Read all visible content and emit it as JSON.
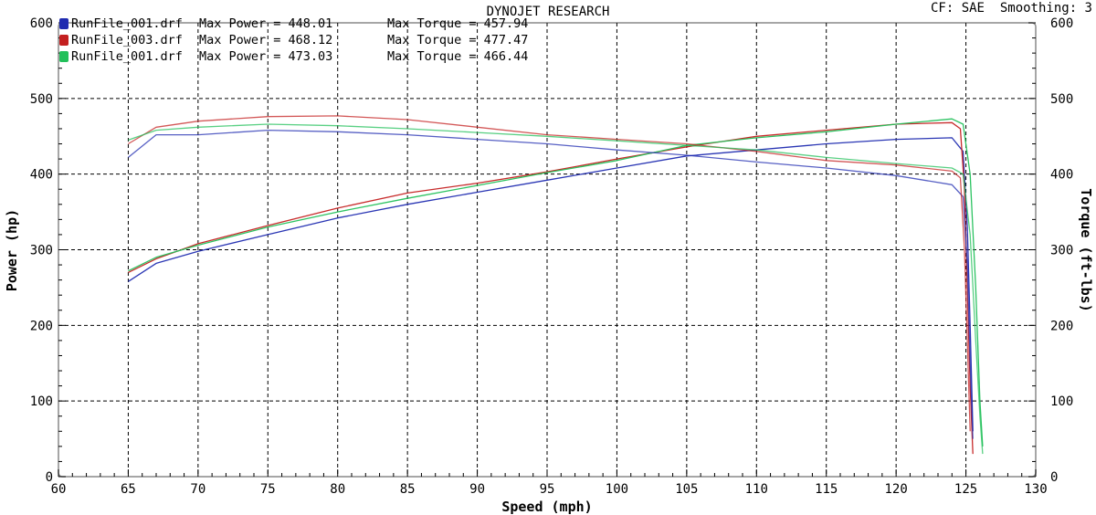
{
  "header": {
    "title": "DYNOJET RESEARCH",
    "settings": "CF: SAE  Smoothing: 3"
  },
  "legend": [
    {
      "file": "RunFile_001.drf",
      "power": "Max Power = 448.01",
      "torque": "Max Torque = 457.94",
      "color": "#1f2bb0"
    },
    {
      "file": "RunFile_003.drf",
      "power": "Max Power = 468.12",
      "torque": "Max Torque = 477.47",
      "color": "#c42020"
    },
    {
      "file": "RunFile_001.drf",
      "power": "Max Power = 473.03",
      "torque": "Max Torque = 466.44",
      "color": "#22c05a"
    }
  ],
  "chart_data": {
    "type": "line",
    "title": "DYNOJET RESEARCH",
    "xlabel": "Speed (mph)",
    "ylabel": "Power (hp)",
    "y2label": "Torque (ft-lbs)",
    "xlim": [
      60,
      130
    ],
    "ylim": [
      0,
      600
    ],
    "y2lim": [
      0,
      600
    ],
    "xticks": [
      60,
      65,
      70,
      75,
      80,
      85,
      90,
      95,
      100,
      105,
      110,
      115,
      120,
      125,
      130
    ],
    "yticks": [
      0,
      100,
      200,
      300,
      400,
      500,
      600
    ],
    "y2ticks": [
      0,
      100,
      200,
      300,
      400,
      500,
      600
    ],
    "grid": true,
    "legend_position": "top-left",
    "series": [
      {
        "name": "RunFile_001.drf",
        "quantity": "power",
        "color": "#1f2bb0",
        "points": [
          [
            65,
            258
          ],
          [
            67,
            282
          ],
          [
            70,
            298
          ],
          [
            75,
            320
          ],
          [
            80,
            342
          ],
          [
            85,
            360
          ],
          [
            90,
            376
          ],
          [
            95,
            392
          ],
          [
            100,
            408
          ],
          [
            105,
            424
          ],
          [
            110,
            432
          ],
          [
            115,
            440
          ],
          [
            120,
            446
          ],
          [
            124,
            448
          ],
          [
            124.8,
            430
          ],
          [
            125.1,
            330
          ],
          [
            125.3,
            200
          ],
          [
            125.5,
            60
          ]
        ]
      },
      {
        "name": "RunFile_003.drf",
        "quantity": "power",
        "color": "#c42020",
        "points": [
          [
            65,
            270
          ],
          [
            67,
            288
          ],
          [
            70,
            308
          ],
          [
            75,
            332
          ],
          [
            80,
            355
          ],
          [
            85,
            375
          ],
          [
            90,
            388
          ],
          [
            95,
            403
          ],
          [
            100,
            420
          ],
          [
            105,
            436
          ],
          [
            110,
            450
          ],
          [
            115,
            458
          ],
          [
            120,
            466
          ],
          [
            124,
            468
          ],
          [
            124.6,
            460
          ],
          [
            124.9,
            380
          ],
          [
            125.1,
            250
          ],
          [
            125.3,
            120
          ],
          [
            125.5,
            30
          ]
        ]
      },
      {
        "name": "RunFile_001.drf",
        "quantity": "power",
        "color": "#22c05a",
        "points": [
          [
            65,
            272
          ],
          [
            67,
            290
          ],
          [
            70,
            306
          ],
          [
            75,
            330
          ],
          [
            80,
            350
          ],
          [
            85,
            368
          ],
          [
            90,
            385
          ],
          [
            95,
            402
          ],
          [
            100,
            418
          ],
          [
            105,
            438
          ],
          [
            110,
            448
          ],
          [
            115,
            456
          ],
          [
            120,
            466
          ],
          [
            124,
            473
          ],
          [
            124.8,
            466
          ],
          [
            125.3,
            400
          ],
          [
            125.7,
            250
          ],
          [
            126,
            100
          ],
          [
            126.2,
            40
          ]
        ]
      },
      {
        "name": "RunFile_001.drf",
        "quantity": "torque",
        "color": "#1f2bb0",
        "points": [
          [
            65,
            422
          ],
          [
            67,
            452
          ],
          [
            70,
            452
          ],
          [
            75,
            458
          ],
          [
            80,
            456
          ],
          [
            85,
            452
          ],
          [
            90,
            446
          ],
          [
            95,
            440
          ],
          [
            100,
            432
          ],
          [
            105,
            425
          ],
          [
            110,
            416
          ],
          [
            115,
            408
          ],
          [
            120,
            398
          ],
          [
            124,
            386
          ],
          [
            124.8,
            370
          ],
          [
            125.1,
            280
          ],
          [
            125.3,
            150
          ],
          [
            125.5,
            50
          ]
        ]
      },
      {
        "name": "RunFile_003.drf",
        "quantity": "torque",
        "color": "#c42020",
        "points": [
          [
            65,
            440
          ],
          [
            67,
            462
          ],
          [
            70,
            470
          ],
          [
            75,
            476
          ],
          [
            80,
            477
          ],
          [
            85,
            472
          ],
          [
            90,
            462
          ],
          [
            95,
            452
          ],
          [
            100,
            446
          ],
          [
            105,
            440
          ],
          [
            110,
            430
          ],
          [
            115,
            418
          ],
          [
            120,
            412
          ],
          [
            124,
            404
          ],
          [
            124.6,
            395
          ],
          [
            124.9,
            300
          ],
          [
            125.1,
            180
          ],
          [
            125.3,
            60
          ]
        ]
      },
      {
        "name": "RunFile_001.drf",
        "quantity": "torque",
        "color": "#22c05a",
        "points": [
          [
            65,
            445
          ],
          [
            67,
            458
          ],
          [
            70,
            462
          ],
          [
            75,
            466
          ],
          [
            80,
            464
          ],
          [
            85,
            460
          ],
          [
            90,
            455
          ],
          [
            95,
            450
          ],
          [
            100,
            444
          ],
          [
            105,
            438
          ],
          [
            110,
            432
          ],
          [
            115,
            422
          ],
          [
            120,
            414
          ],
          [
            124,
            408
          ],
          [
            124.8,
            400
          ],
          [
            125.3,
            320
          ],
          [
            125.7,
            180
          ],
          [
            126,
            80
          ],
          [
            126.2,
            30
          ]
        ]
      }
    ]
  }
}
